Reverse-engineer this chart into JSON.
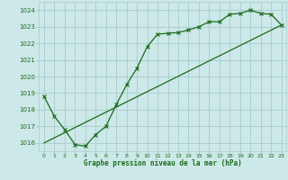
{
  "line1_x": [
    0,
    1,
    2,
    3,
    4,
    5,
    6,
    7,
    8,
    9,
    10,
    11,
    12,
    13,
    14,
    15,
    16,
    17,
    18,
    19,
    20,
    21,
    22,
    23
  ],
  "line1_y": [
    1018.8,
    1017.6,
    1016.8,
    1015.9,
    1015.8,
    1016.5,
    1017.0,
    1018.3,
    1019.5,
    1020.5,
    1021.8,
    1022.55,
    1022.6,
    1022.65,
    1022.8,
    1023.0,
    1023.3,
    1023.3,
    1023.75,
    1023.8,
    1024.0,
    1023.8,
    1023.75,
    1023.1
  ],
  "line2_x": [
    0,
    23
  ],
  "line2_y": [
    1016.0,
    1023.1
  ],
  "line_color": "#1a6b1a",
  "bg_color": "#cce8e8",
  "grid_color": "#aacccc",
  "xlabel": "Graphe pression niveau de la mer (hPa)",
  "ylim": [
    1015.5,
    1024.5
  ],
  "xlim": [
    -0.5,
    23.5
  ],
  "yticks": [
    1016,
    1017,
    1018,
    1019,
    1020,
    1021,
    1022,
    1023,
    1024
  ],
  "xticks": [
    0,
    1,
    2,
    3,
    4,
    5,
    6,
    7,
    8,
    9,
    10,
    11,
    12,
    13,
    14,
    15,
    16,
    17,
    18,
    19,
    20,
    21,
    22,
    23
  ]
}
